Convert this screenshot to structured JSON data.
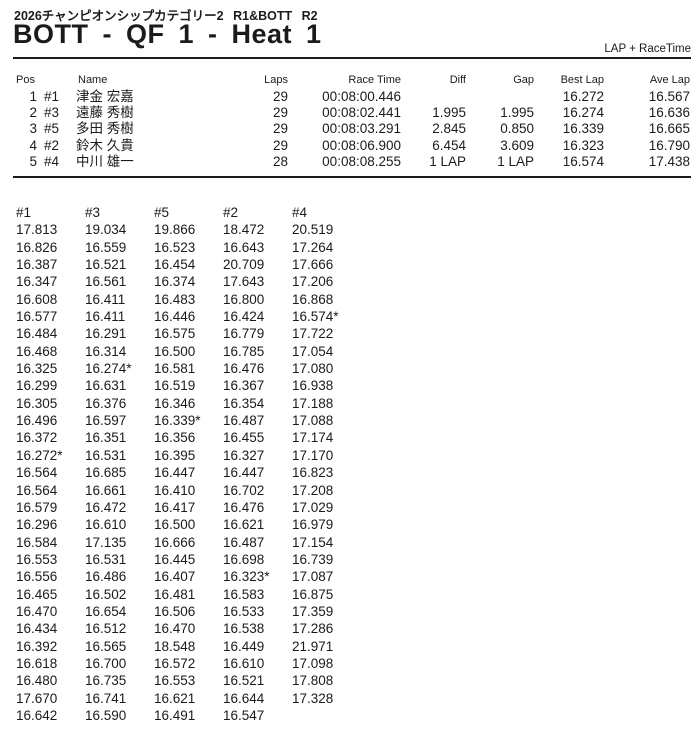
{
  "header": {
    "event_line": "2026チャンピオンシップカテゴリー2 R1&BOTT R2",
    "title": "BOTT - QF 1 - Heat 1",
    "report_type": "LAP + RaceTime"
  },
  "results": {
    "headers": {
      "pos": "Pos",
      "name": "Name",
      "laps": "Laps",
      "race_time": "Race Time",
      "diff": "Diff",
      "gap": "Gap",
      "best_lap": "Best Lap",
      "ave_lap": "Ave Lap"
    },
    "rows": [
      {
        "pos": "1",
        "num": "#1",
        "name": "津金 宏嘉",
        "laps": "29",
        "race_time": "00:08:00.446",
        "diff": "",
        "gap": "",
        "best_lap": "16.272",
        "ave_lap": "16.567"
      },
      {
        "pos": "2",
        "num": "#3",
        "name": "遠藤 秀樹",
        "laps": "29",
        "race_time": "00:08:02.441",
        "diff": "1.995",
        "gap": "1.995",
        "best_lap": "16.274",
        "ave_lap": "16.636"
      },
      {
        "pos": "3",
        "num": "#5",
        "name": "多田 秀樹",
        "laps": "29",
        "race_time": "00:08:03.291",
        "diff": "2.845",
        "gap": "0.850",
        "best_lap": "16.339",
        "ave_lap": "16.665"
      },
      {
        "pos": "4",
        "num": "#2",
        "name": "鈴木 久貴",
        "laps": "29",
        "race_time": "00:08:06.900",
        "diff": "6.454",
        "gap": "3.609",
        "best_lap": "16.323",
        "ave_lap": "16.790"
      },
      {
        "pos": "5",
        "num": "#4",
        "name": "中川 雄一",
        "laps": "28",
        "race_time": "00:08:08.255",
        "diff": "1 LAP",
        "gap": "1 LAP",
        "best_lap": "16.574",
        "ave_lap": "17.438"
      }
    ]
  },
  "lap_times": {
    "columns": [
      "#1",
      "#3",
      "#5",
      "#2",
      "#4"
    ],
    "rows": [
      [
        "17.813",
        "19.034",
        "19.866",
        "18.472",
        "20.519"
      ],
      [
        "16.826",
        "16.559",
        "16.523",
        "16.643",
        "17.264"
      ],
      [
        "16.387",
        "16.521",
        "16.454",
        "20.709",
        "17.666"
      ],
      [
        "16.347",
        "16.561",
        "16.374",
        "17.643",
        "17.206"
      ],
      [
        "16.608",
        "16.411",
        "16.483",
        "16.800",
        "16.868"
      ],
      [
        "16.577",
        "16.411",
        "16.446",
        "16.424",
        "16.574*"
      ],
      [
        "16.484",
        "16.291",
        "16.575",
        "16.779",
        "17.722"
      ],
      [
        "16.468",
        "16.314",
        "16.500",
        "16.785",
        "17.054"
      ],
      [
        "16.325",
        "16.274*",
        "16.581",
        "16.476",
        "17.080"
      ],
      [
        "16.299",
        "16.631",
        "16.519",
        "16.367",
        "16.938"
      ],
      [
        "16.305",
        "16.376",
        "16.346",
        "16.354",
        "17.188"
      ],
      [
        "16.496",
        "16.597",
        "16.339*",
        "16.487",
        "17.088"
      ],
      [
        "16.372",
        "16.351",
        "16.356",
        "16.455",
        "17.174"
      ],
      [
        "16.272*",
        "16.531",
        "16.395",
        "16.327",
        "17.170"
      ],
      [
        "16.564",
        "16.685",
        "16.447",
        "16.447",
        "16.823"
      ],
      [
        "16.564",
        "16.661",
        "16.410",
        "16.702",
        "17.208"
      ],
      [
        "16.579",
        "16.472",
        "16.417",
        "16.476",
        "17.029"
      ],
      [
        "16.296",
        "16.610",
        "16.500",
        "16.621",
        "16.979"
      ],
      [
        "16.584",
        "17.135",
        "16.666",
        "16.487",
        "17.154"
      ],
      [
        "16.553",
        "16.531",
        "16.445",
        "16.698",
        "16.739"
      ],
      [
        "16.556",
        "16.486",
        "16.407",
        "16.323*",
        "17.087"
      ],
      [
        "16.465",
        "16.502",
        "16.481",
        "16.583",
        "16.875"
      ],
      [
        "16.470",
        "16.654",
        "16.506",
        "16.533",
        "17.359"
      ],
      [
        "16.434",
        "16.512",
        "16.470",
        "16.538",
        "17.286"
      ],
      [
        "16.392",
        "16.565",
        "18.548",
        "16.449",
        "21.971"
      ],
      [
        "16.618",
        "16.700",
        "16.572",
        "16.610",
        "17.098"
      ],
      [
        "16.480",
        "16.735",
        "16.553",
        "16.521",
        "17.808"
      ],
      [
        "17.670",
        "16.741",
        "16.621",
        "16.644",
        "17.328"
      ],
      [
        "16.642",
        "16.590",
        "16.491",
        "16.547",
        ""
      ]
    ]
  }
}
